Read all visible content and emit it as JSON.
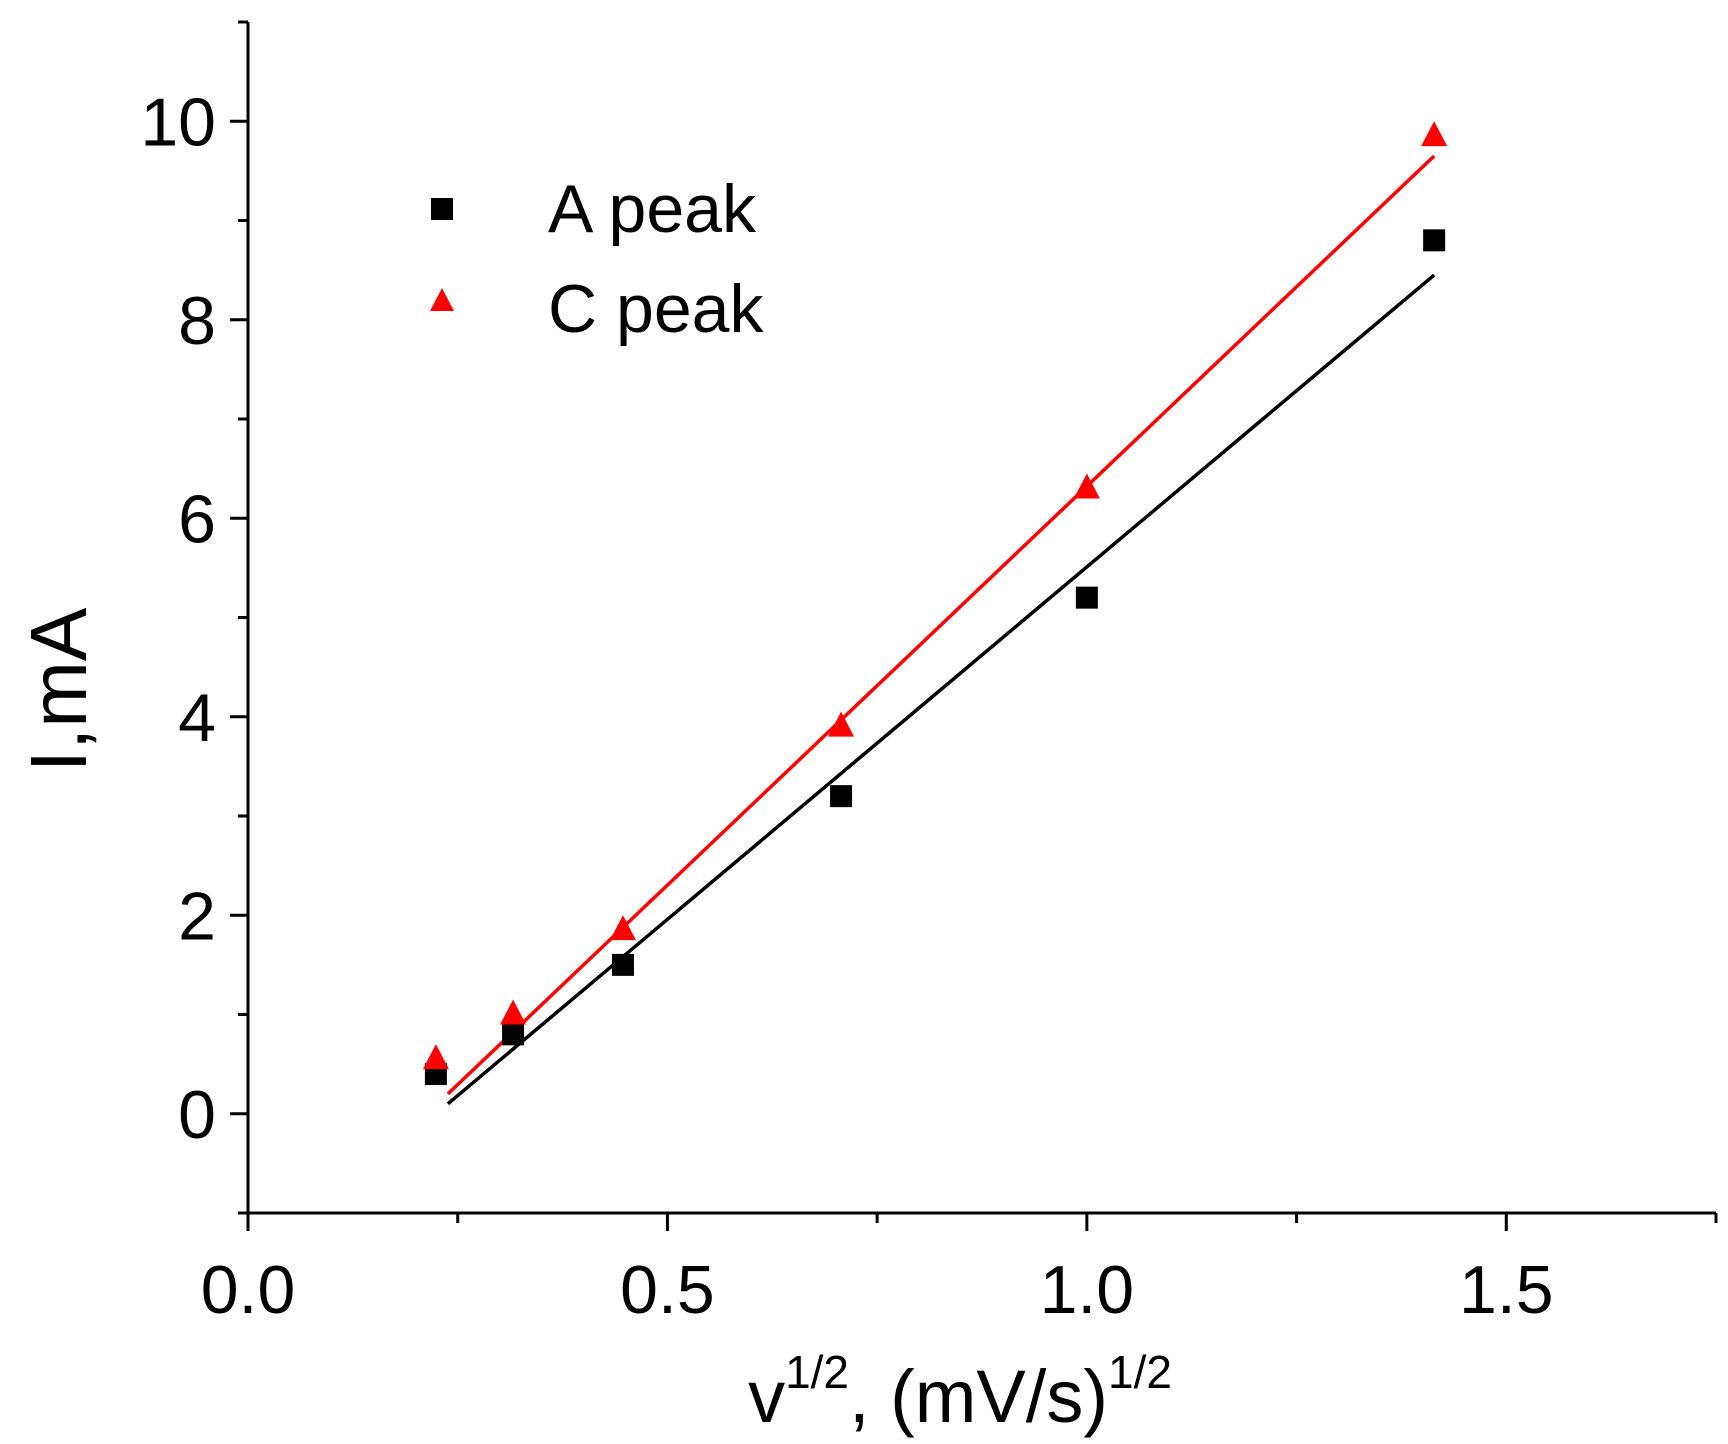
{
  "chart_data": {
    "type": "scatter",
    "title": "",
    "xlabel": {
      "base": "v",
      "sup1": "1/2",
      "mid": ", (mV/s)",
      "sup2": "1/2"
    },
    "ylabel": "I,mA",
    "xlim": [
      0,
      1.75
    ],
    "ylim": [
      -1,
      11
    ],
    "x_major_ticks": [
      0.0,
      0.5,
      1.0,
      1.5
    ],
    "x_tick_labels": [
      "0.0",
      "0.5",
      "1.0",
      "1.5"
    ],
    "x_minor_ticks": [
      0.25,
      0.75,
      1.25,
      1.75
    ],
    "y_major_ticks": [
      0,
      2,
      4,
      6,
      8,
      10
    ],
    "y_tick_labels": [
      "0",
      "2",
      "4",
      "6",
      "8",
      "10"
    ],
    "y_minor_ticks": [
      -1,
      1,
      3,
      5,
      7,
      9,
      11
    ],
    "legend_position": "top-left",
    "series": [
      {
        "name": "A peak",
        "marker": "square",
        "color": "#000000",
        "x": [
          0.224,
          0.316,
          0.447,
          0.707,
          1.0,
          1.414
        ],
        "y": [
          0.4,
          0.8,
          1.5,
          3.2,
          5.2,
          8.8
        ],
        "fit": {
          "x": [
            0.224,
            1.414
          ],
          "y": [
            0.1,
            8.45
          ]
        }
      },
      {
        "name": "C peak",
        "marker": "triangle",
        "color": "#ff0000",
        "x": [
          0.224,
          0.316,
          0.447,
          0.707,
          1.0,
          1.414
        ],
        "y": [
          0.55,
          1.0,
          1.85,
          3.9,
          6.3,
          9.85
        ],
        "fit": {
          "x": [
            0.224,
            1.414
          ],
          "y": [
            0.2,
            9.65
          ]
        }
      }
    ]
  }
}
